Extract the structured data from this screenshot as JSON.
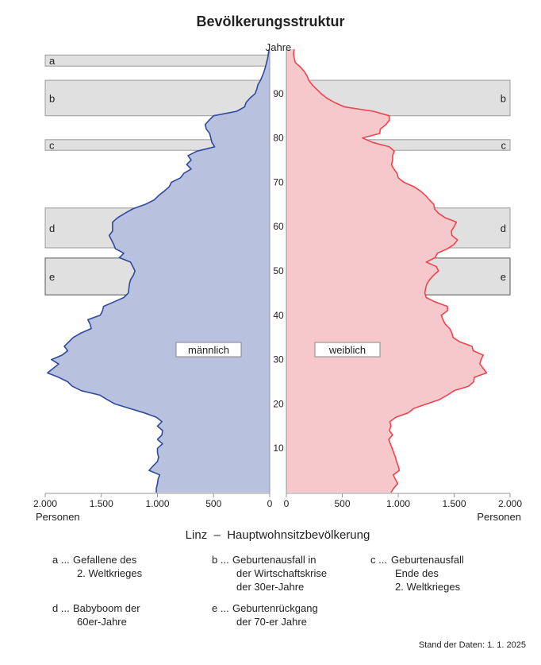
{
  "chart_data": {
    "type": "area",
    "subtype": "population-pyramid",
    "title": "Bevölkerungsstruktur",
    "subtitle": "Linz  –  Hauptwohnsitzbevölkerung",
    "y_axis_label": "Jahre",
    "x_axis_label_left": "Personen",
    "x_axis_label_right": "Personen",
    "ylim": [
      0,
      100
    ],
    "xlim": [
      0,
      2000
    ],
    "y_ticks": [
      "10",
      "20",
      "30",
      "40",
      "50",
      "60",
      "70",
      "80",
      "90"
    ],
    "x_ticks_left": [
      "2.000",
      "1.500",
      "1.000",
      "500",
      "0"
    ],
    "x_ticks_right": [
      "0",
      "500",
      "1.000",
      "1.500",
      "2.000"
    ],
    "grid": false,
    "colors": {
      "male_fill": "#b8c1dd",
      "male_line": "#2e4a9e",
      "female_fill": "#f7c8cb",
      "female_line": "#e8474f",
      "band_fill": "#e0e0e0",
      "band_border": "#9a9a9a"
    },
    "ages": [
      0,
      1,
      2,
      3,
      4,
      5,
      6,
      7,
      8,
      9,
      10,
      11,
      12,
      13,
      14,
      15,
      16,
      17,
      18,
      19,
      20,
      21,
      22,
      23,
      24,
      25,
      26,
      27,
      28,
      29,
      30,
      31,
      32,
      33,
      34,
      35,
      36,
      37,
      38,
      39,
      40,
      41,
      42,
      43,
      44,
      45,
      46,
      47,
      48,
      49,
      50,
      51,
      52,
      53,
      54,
      55,
      56,
      57,
      58,
      59,
      60,
      61,
      62,
      63,
      64,
      65,
      66,
      67,
      68,
      69,
      70,
      71,
      72,
      73,
      74,
      75,
      76,
      77,
      78,
      79,
      80,
      81,
      82,
      83,
      84,
      85,
      86,
      87,
      88,
      89,
      90,
      91,
      92,
      93,
      94,
      95,
      96,
      97,
      98,
      99,
      100
    ],
    "series": [
      {
        "name": "männlich",
        "side": "left",
        "values": [
          1010,
          1010,
          1000,
          995,
          980,
          1075,
          1040,
          1000,
          990,
          1000,
          1000,
          955,
          1000,
          960,
          955,
          1000,
          960,
          1010,
          1120,
          1250,
          1380,
          1450,
          1515,
          1680,
          1760,
          1800,
          1880,
          1980,
          1930,
          1880,
          1945,
          1850,
          1800,
          1830,
          1790,
          1750,
          1680,
          1590,
          1600,
          1620,
          1510,
          1490,
          1480,
          1390,
          1300,
          1260,
          1255,
          1250,
          1240,
          1215,
          1200,
          1220,
          1240,
          1340,
          1300,
          1375,
          1390,
          1410,
          1430,
          1400,
          1400,
          1400,
          1355,
          1290,
          1220,
          1110,
          1030,
          990,
          940,
          895,
          875,
          795,
          765,
          700,
          740,
          700,
          728,
          650,
          490,
          515,
          525,
          535,
          565,
          575,
          540,
          500,
          295,
          224,
          210,
          175,
          130,
          115,
          105,
          82,
          65,
          50,
          38,
          28,
          18,
          12,
          5
        ]
      },
      {
        "name": "weiblich",
        "side": "right",
        "values": [
          935,
          960,
          995,
          975,
          955,
          1010,
          1000,
          985,
          975,
          960,
          945,
          930,
          915,
          950,
          920,
          935,
          925,
          980,
          1090,
          1140,
          1255,
          1370,
          1440,
          1500,
          1630,
          1675,
          1680,
          1790,
          1760,
          1730,
          1740,
          1760,
          1670,
          1660,
          1550,
          1490,
          1480,
          1460,
          1420,
          1400,
          1385,
          1440,
          1440,
          1330,
          1250,
          1238,
          1245,
          1255,
          1280,
          1315,
          1360,
          1340,
          1250,
          1330,
          1350,
          1440,
          1500,
          1530,
          1480,
          1475,
          1500,
          1520,
          1420,
          1360,
          1325,
          1318,
          1280,
          1245,
          1200,
          1140,
          1050,
          1000,
          990,
          960,
          940,
          950,
          950,
          965,
          920,
          770,
          680,
          835,
          840,
          890,
          920,
          920,
          780,
          520,
          430,
          360,
          310,
          270,
          230,
          200,
          185,
          160,
          125,
          80,
          70,
          64,
          70
        ]
      }
    ],
    "bands": [
      {
        "letter": "a",
        "ages": [
          96.2,
          98.7
        ],
        "sides": [
          "left"
        ]
      },
      {
        "letter": "b",
        "ages": [
          85,
          93
        ],
        "sides": [
          "left",
          "right"
        ]
      },
      {
        "letter": "c",
        "ages": [
          77.2,
          79.6
        ],
        "sides": [
          "left",
          "right"
        ]
      },
      {
        "letter": "d",
        "ages": [
          55.2,
          64.2
        ],
        "sides": [
          "left",
          "right"
        ]
      },
      {
        "letter": "e",
        "ages": [
          44.6,
          52.9
        ],
        "sides": [
          "left",
          "right"
        ]
      }
    ],
    "legend": [
      {
        "key": "a ...",
        "lines": [
          "Gefallene des",
          "2. Weltkrieges"
        ]
      },
      {
        "key": "b ...",
        "lines": [
          "Geburtenausfall in",
          "der Wirtschaftskrise",
          "der 30er-Jahre"
        ]
      },
      {
        "key": "c ...",
        "lines": [
          "Geburtenausfall",
          "Ende des",
          "2. Weltkrieges"
        ]
      },
      {
        "key": "d ...",
        "lines": [
          "Babyboom der",
          "60er-Jahre"
        ]
      },
      {
        "key": "e ...",
        "lines": [
          "Geburtenrückgang",
          "der 70-er Jahre"
        ]
      }
    ],
    "footnote": "Stand der Daten: 1. 1. 2025"
  }
}
